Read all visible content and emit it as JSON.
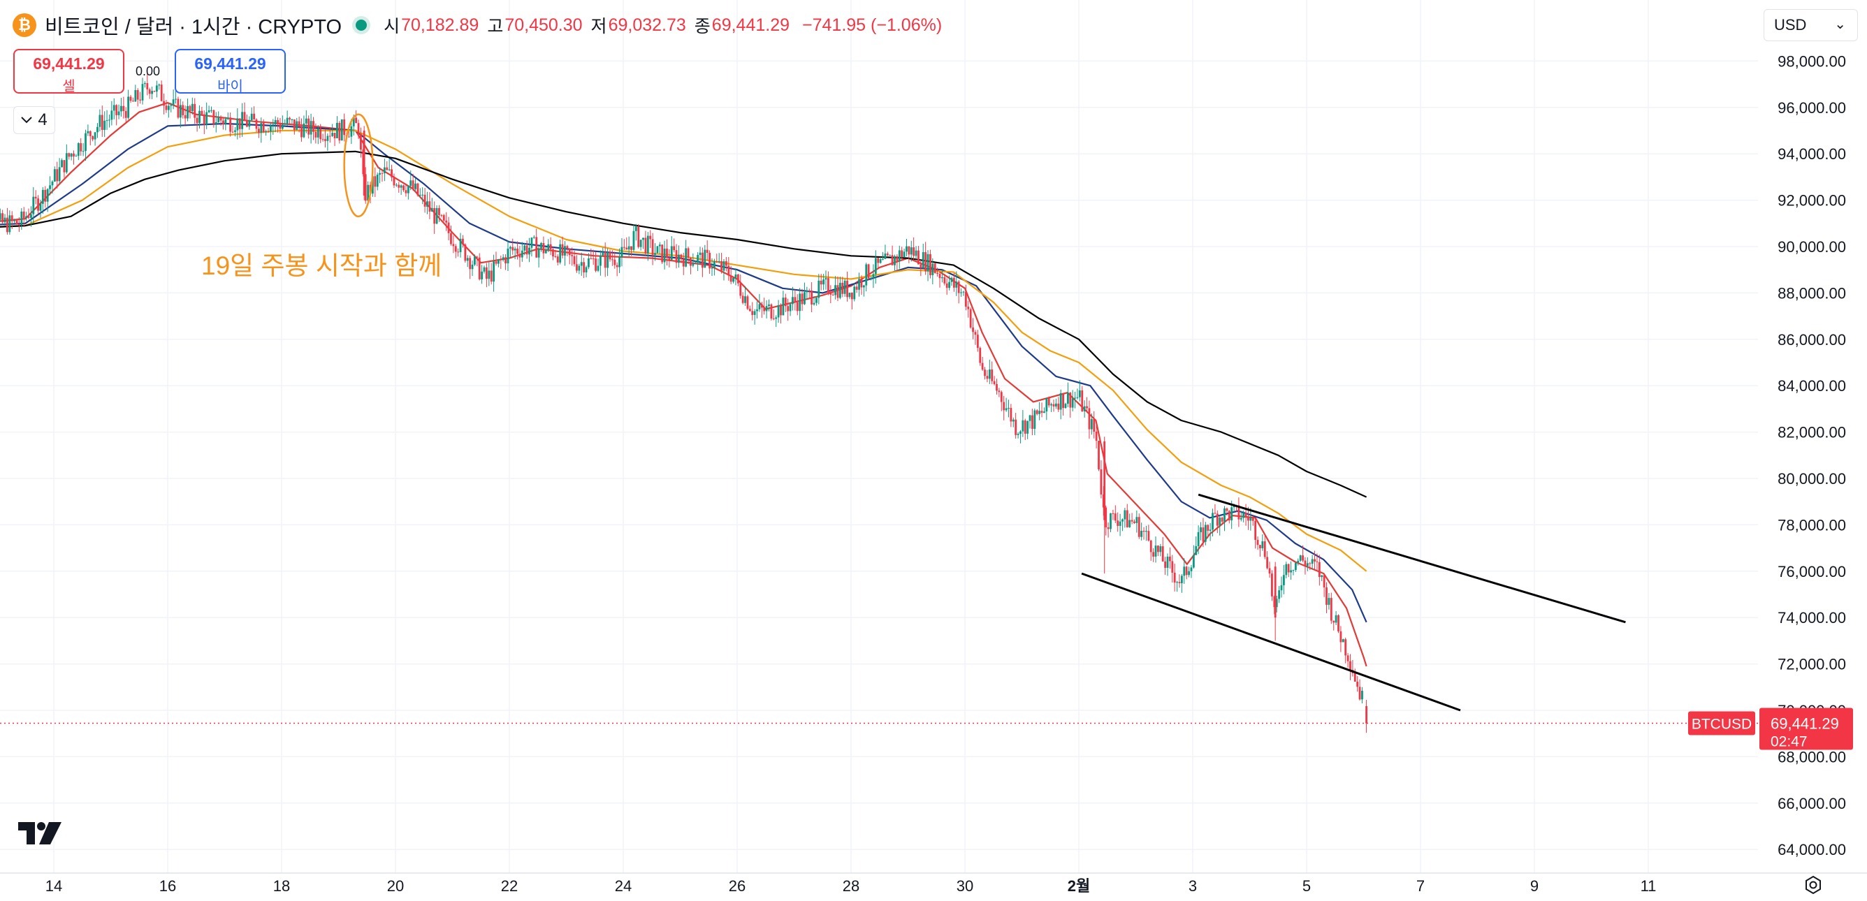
{
  "header": {
    "symbol_title": "비트코인 / 달러 · 1시간 · CRYPTO",
    "icon": "bitcoin-icon",
    "ohlc": [
      {
        "label": "시",
        "value": "70,182.89"
      },
      {
        "label": "고",
        "value": "70,450.30"
      },
      {
        "label": "저",
        "value": "69,032.73"
      },
      {
        "label": "종",
        "value": "69,441.29"
      }
    ],
    "change": "−741.95 (−1.06%)"
  },
  "trade": {
    "sell_price": "69,441.29",
    "sell_label": "셀",
    "buy_price": "69,441.29",
    "buy_label": "바이",
    "spread": "0.00"
  },
  "indicators": {
    "count": "4"
  },
  "currency": "USD",
  "annotation": "19일 주봉 시작과 함께",
  "price_tag": {
    "symbol": "BTCUSD",
    "price": "69,441.29",
    "countdown": "02:47"
  },
  "colors": {
    "up": "#089981",
    "down": "#f23645",
    "ema_fast": "#e53935",
    "ema_mid": "#1e3a8a",
    "ema_slow": "#f59e0b",
    "ema_long": "#000000",
    "annotation": "#f7931a",
    "buy": "#2962ff"
  },
  "chart_data": {
    "type": "candlestick",
    "title": "비트코인 / 달러 · 1시간 · CRYPTO",
    "x_unit": "day",
    "y_ticks": [
      64000,
      66000,
      68000,
      70000,
      72000,
      74000,
      76000,
      78000,
      80000,
      82000,
      84000,
      86000,
      88000,
      90000,
      92000,
      94000,
      96000,
      98000
    ],
    "y_tick_labels": [
      "64,000.00",
      "66,000.00",
      "68,000.00",
      "70,000.00",
      "72,000.00",
      "74,000.00",
      "76,000.00",
      "78,000.00",
      "80,000.00",
      "82,000.00",
      "84,000.00",
      "86,000.00",
      "88,000.00",
      "90,000.00",
      "92,000.00",
      "94,000.00",
      "96,000.00",
      "98,000.00"
    ],
    "x_ticks": [
      {
        "day": 14,
        "label": "14"
      },
      {
        "day": 16,
        "label": "16"
      },
      {
        "day": 18,
        "label": "18"
      },
      {
        "day": 20,
        "label": "20"
      },
      {
        "day": 22,
        "label": "22"
      },
      {
        "day": 24,
        "label": "24"
      },
      {
        "day": 26,
        "label": "26"
      },
      {
        "day": 28,
        "label": "28"
      },
      {
        "day": 30,
        "label": "30"
      },
      {
        "day": 32,
        "label": "2월",
        "bold": true
      },
      {
        "day": 34,
        "label": "3"
      },
      {
        "day": 36,
        "label": "5"
      },
      {
        "day": 38,
        "label": "7"
      },
      {
        "day": 40,
        "label": "9"
      },
      {
        "day": 42,
        "label": "11"
      }
    ],
    "last_price": 69441.29,
    "price_path": [
      [
        12.6,
        91800
      ],
      [
        13.0,
        91000
      ],
      [
        13.4,
        91000
      ],
      [
        13.8,
        92200
      ],
      [
        14.3,
        94000
      ],
      [
        14.8,
        95300
      ],
      [
        15.3,
        96000
      ],
      [
        15.7,
        97000
      ],
      [
        16.1,
        96000
      ],
      [
        16.6,
        95600
      ],
      [
        17.1,
        95400
      ],
      [
        17.6,
        95300
      ],
      [
        18.1,
        95300
      ],
      [
        18.6,
        95000
      ],
      [
        19.0,
        95000
      ],
      [
        19.35,
        95200
      ],
      [
        19.45,
        92200
      ],
      [
        19.8,
        93200
      ],
      [
        20.3,
        92500
      ],
      [
        20.8,
        91000
      ],
      [
        21.3,
        89500
      ],
      [
        21.6,
        88600
      ],
      [
        22.0,
        89800
      ],
      [
        22.4,
        90000
      ],
      [
        22.8,
        89800
      ],
      [
        23.2,
        89300
      ],
      [
        23.6,
        89400
      ],
      [
        24.0,
        89600
      ],
      [
        24.2,
        90500
      ],
      [
        24.6,
        89700
      ],
      [
        25.0,
        89600
      ],
      [
        25.5,
        89400
      ],
      [
        25.9,
        88800
      ],
      [
        26.3,
        87200
      ],
      [
        26.7,
        87300
      ],
      [
        27.2,
        87800
      ],
      [
        27.6,
        88300
      ],
      [
        28.0,
        88100
      ],
      [
        28.3,
        88900
      ],
      [
        28.7,
        89400
      ],
      [
        29.0,
        89900
      ],
      [
        29.4,
        89200
      ],
      [
        29.8,
        88300
      ],
      [
        30.0,
        87900
      ],
      [
        30.3,
        84700
      ],
      [
        30.6,
        83700
      ],
      [
        30.9,
        82200
      ],
      [
        31.2,
        82500
      ],
      [
        31.6,
        83400
      ],
      [
        32.0,
        83500
      ],
      [
        32.3,
        81800
      ],
      [
        32.45,
        78200
      ],
      [
        32.7,
        78300
      ],
      [
        33.0,
        78100
      ],
      [
        33.5,
        76400
      ],
      [
        33.8,
        75500
      ],
      [
        34.1,
        77300
      ],
      [
        34.4,
        78400
      ],
      [
        34.7,
        78500
      ],
      [
        35.0,
        78300
      ],
      [
        35.3,
        76700
      ],
      [
        35.45,
        74000
      ],
      [
        35.6,
        76200
      ],
      [
        35.9,
        76500
      ],
      [
        36.2,
        76100
      ],
      [
        36.5,
        73800
      ],
      [
        36.75,
        72300
      ],
      [
        36.9,
        71000
      ],
      [
        37.0,
        70300
      ],
      [
        37.05,
        69441
      ]
    ],
    "spike_candles": [
      {
        "day": 19.45,
        "open": 95000,
        "close": 92200,
        "low": 92000,
        "high": 95200
      },
      {
        "day": 32.45,
        "open": 81600,
        "close": 78200,
        "low": 75900,
        "high": 81800
      },
      {
        "day": 35.45,
        "open": 76200,
        "close": 74000,
        "low": 73000,
        "high": 76400
      },
      {
        "day": 37.05,
        "open": 70180,
        "close": 69441,
        "low": 69030,
        "high": 70450
      }
    ],
    "series": [
      {
        "name": "",
        "color": "#e53935",
        "points": [
          [
            12.6,
            91000
          ],
          [
            13.5,
            91200
          ],
          [
            14.3,
            93200
          ],
          [
            15.0,
            94800
          ],
          [
            15.5,
            95800
          ],
          [
            16.0,
            96200
          ],
          [
            16.5,
            95700
          ],
          [
            17.5,
            95400
          ],
          [
            18.5,
            95200
          ],
          [
            19.3,
            95000
          ],
          [
            19.7,
            93400
          ],
          [
            20.3,
            92500
          ],
          [
            21.0,
            90600
          ],
          [
            21.5,
            89300
          ],
          [
            22.0,
            89500
          ],
          [
            22.5,
            89900
          ],
          [
            23.5,
            89600
          ],
          [
            24.5,
            89500
          ],
          [
            25.5,
            89200
          ],
          [
            26.0,
            88600
          ],
          [
            26.5,
            87300
          ],
          [
            27.0,
            87600
          ],
          [
            27.5,
            87900
          ],
          [
            28.0,
            88300
          ],
          [
            28.5,
            89100
          ],
          [
            29.0,
            89500
          ],
          [
            29.5,
            89000
          ],
          [
            30.0,
            88200
          ],
          [
            30.3,
            86300
          ],
          [
            30.7,
            84300
          ],
          [
            31.2,
            83300
          ],
          [
            31.8,
            83700
          ],
          [
            32.3,
            82500
          ],
          [
            32.5,
            80200
          ],
          [
            33.0,
            78900
          ],
          [
            33.5,
            77600
          ],
          [
            33.9,
            76300
          ],
          [
            34.3,
            77600
          ],
          [
            34.7,
            78400
          ],
          [
            35.1,
            78300
          ],
          [
            35.4,
            77000
          ],
          [
            35.8,
            76400
          ],
          [
            36.3,
            75900
          ],
          [
            36.7,
            74400
          ],
          [
            37.0,
            72300
          ],
          [
            37.05,
            71900
          ]
        ]
      },
      {
        "name": "",
        "color": "#1e3a8a",
        "points": [
          [
            12.6,
            90900
          ],
          [
            13.5,
            91000
          ],
          [
            14.5,
            92700
          ],
          [
            15.3,
            94200
          ],
          [
            16.0,
            95200
          ],
          [
            17.0,
            95300
          ],
          [
            18.0,
            95200
          ],
          [
            19.3,
            95000
          ],
          [
            19.8,
            94000
          ],
          [
            20.5,
            92700
          ],
          [
            21.3,
            91000
          ],
          [
            22.0,
            90200
          ],
          [
            23.0,
            89900
          ],
          [
            24.0,
            89700
          ],
          [
            25.0,
            89500
          ],
          [
            26.0,
            89000
          ],
          [
            26.8,
            88200
          ],
          [
            27.5,
            88000
          ],
          [
            28.2,
            88500
          ],
          [
            29.0,
            89100
          ],
          [
            29.6,
            89000
          ],
          [
            30.2,
            88300
          ],
          [
            30.6,
            87000
          ],
          [
            31.0,
            85700
          ],
          [
            31.6,
            84400
          ],
          [
            32.2,
            84000
          ],
          [
            32.6,
            82700
          ],
          [
            33.2,
            80800
          ],
          [
            33.8,
            79000
          ],
          [
            34.3,
            78300
          ],
          [
            34.8,
            78600
          ],
          [
            35.3,
            78200
          ],
          [
            35.8,
            77200
          ],
          [
            36.3,
            76500
          ],
          [
            36.8,
            75200
          ],
          [
            37.05,
            73800
          ]
        ]
      },
      {
        "name": "",
        "color": "#f59e0b",
        "points": [
          [
            12.6,
            90800
          ],
          [
            13.5,
            90900
          ],
          [
            14.5,
            92000
          ],
          [
            15.3,
            93400
          ],
          [
            16.0,
            94300
          ],
          [
            17.0,
            94800
          ],
          [
            18.0,
            95000
          ],
          [
            19.3,
            95000
          ],
          [
            20.0,
            94200
          ],
          [
            21.0,
            92700
          ],
          [
            22.0,
            91300
          ],
          [
            23.0,
            90300
          ],
          [
            24.0,
            89800
          ],
          [
            25.0,
            89600
          ],
          [
            26.0,
            89200
          ],
          [
            27.0,
            88800
          ],
          [
            28.0,
            88600
          ],
          [
            29.0,
            89000
          ],
          [
            29.8,
            88900
          ],
          [
            30.5,
            87600
          ],
          [
            31.0,
            86300
          ],
          [
            31.5,
            85500
          ],
          [
            32.0,
            85000
          ],
          [
            32.6,
            83800
          ],
          [
            33.2,
            82100
          ],
          [
            33.8,
            80700
          ],
          [
            34.5,
            79700
          ],
          [
            35.0,
            79200
          ],
          [
            35.5,
            78500
          ],
          [
            36.0,
            77600
          ],
          [
            36.6,
            76900
          ],
          [
            37.05,
            76000
          ]
        ]
      },
      {
        "name": "",
        "color": "#000000",
        "points": [
          [
            12.6,
            90800
          ],
          [
            13.5,
            90900
          ],
          [
            14.3,
            91300
          ],
          [
            15.0,
            92300
          ],
          [
            15.6,
            92900
          ],
          [
            16.2,
            93300
          ],
          [
            17.0,
            93700
          ],
          [
            18.0,
            94000
          ],
          [
            19.3,
            94100
          ],
          [
            20.0,
            93800
          ],
          [
            21.0,
            92900
          ],
          [
            22.0,
            92100
          ],
          [
            23.0,
            91500
          ],
          [
            24.0,
            91000
          ],
          [
            25.0,
            90600
          ],
          [
            26.0,
            90300
          ],
          [
            27.0,
            89900
          ],
          [
            28.0,
            89600
          ],
          [
            29.0,
            89500
          ],
          [
            29.8,
            89200
          ],
          [
            30.5,
            88200
          ],
          [
            31.3,
            86900
          ],
          [
            32.0,
            86000
          ],
          [
            32.6,
            84500
          ],
          [
            33.2,
            83300
          ],
          [
            33.8,
            82500
          ],
          [
            34.5,
            82000
          ],
          [
            35.0,
            81500
          ],
          [
            35.5,
            81000
          ],
          [
            36.0,
            80300
          ],
          [
            36.6,
            79700
          ],
          [
            37.05,
            79200
          ]
        ]
      }
    ],
    "annotations": {
      "ellipse": {
        "day": 19.35,
        "price": 93500,
        "day_radius": 0.25,
        "price_radius": 2200
      },
      "trendlines": [
        {
          "from": [
            32.05,
            75900
          ],
          "to": [
            38.7,
            70000
          ]
        },
        {
          "from": [
            34.1,
            79300
          ],
          "to": [
            41.6,
            73800
          ]
        }
      ]
    }
  }
}
